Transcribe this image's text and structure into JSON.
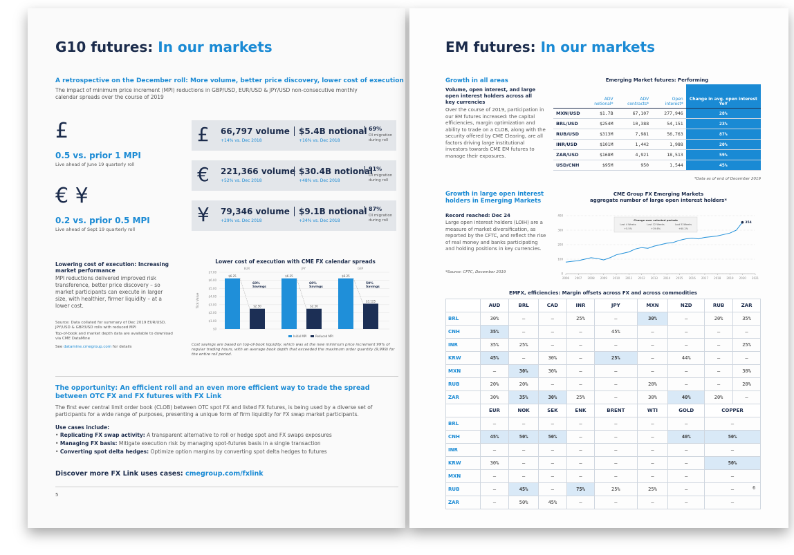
{
  "left_page": {
    "title": "G10 futures:",
    "title_accent": "In our markets",
    "subtitle": "A retrospective on the December roll: More volume, better price discovery, lower cost of execution",
    "intro": "The impact of minimum price increment (MPI) reductions in GBP/USD, EUR/USD & JPY/USD non-consecutive monthly calendar spreads over the course of 2019",
    "icons": [
      "£",
      "€",
      "¥"
    ],
    "mpi": [
      {
        "headline": "0.5 vs. prior 1 MPI",
        "note": "Live ahead of June 19 quarterly roll"
      },
      {
        "headline": "0.2 vs. prior 0.5 MPI",
        "note": "Live ahead of Sept 19 quarterly roll"
      }
    ],
    "stats": [
      {
        "volume": "66,797 volume",
        "volume_change": "+14% vs. Dec 2018",
        "notional": "$5.4B notional",
        "notional_change": "+16% vs. Dec 2018",
        "oi": "69%",
        "oi_note": "OI migration during roll"
      },
      {
        "volume": "221,366 volume",
        "volume_change": "+52% vs. Dec 2018",
        "notional": "$30.4B notional",
        "notional_change": "+48% vs. Dec 2018",
        "oi": "91%",
        "oi_note": "OI migration during roll"
      },
      {
        "volume": "79,346 volume",
        "volume_change": "+29% vs. Dec 2018",
        "notional": "$9.1B notional",
        "notional_change": "+34% vs. Dec 2018",
        "oi": "87%",
        "oi_note": "OI migration during roll"
      }
    ],
    "cost_heading": "Lowering cost of execution: Increasing market performance",
    "cost_text": "MPI reductions delivered improved risk transference, better price discovery – so market participants can execute in larger size, with healthier, firmer liquidity – at a lower cost.",
    "source_notes": [
      "Source: Data collated for summary of Dec 2019 EUR/USD, JPY/USD & GBP/USD rolls with reduced MPI",
      "Top-of-book and market depth data are available to download via CME DataMine"
    ],
    "see_prefix": "See",
    "see_link": "datamine.cmegroup.com",
    "see_suffix": "for details",
    "chart_caption": "Cost savings are based on top-of-book liquidity, which was at the new minimum price increment 99% of regular trading hours, with an average book depth that exceeded the maximum order quantity (9,999) for the entire roll period.",
    "opportunity_heading": "The opportunity: An efficient roll and an even more efficient way to trade the spread between OTC FX and FX futures with FX Link",
    "opportunity_text": "The first ever central limit order book (CLOB) between OTC spot FX and listed FX futures, is being used by a diverse set of participants for a wide range of purposes, presenting a unique form of firm liquidity for FX swap market participants.",
    "use_cases_heading": "Use cases include:",
    "use_cases": [
      {
        "label": "Replicating FX swap activity:",
        "text": "A transparent alternative to roll or hedge spot and FX swaps exposures"
      },
      {
        "label": "Managing FX basis:",
        "text": "Mitigate execution risk by managing spot-futures basis in a single transaction"
      },
      {
        "label": "Converting spot delta hedges:",
        "text": "Optimize option margins by converting spot delta hedges to futures"
      }
    ],
    "discover": "Discover more FX Link uses cases:",
    "discover_link": "cmegroup.com/fxlink",
    "page_number": "5"
  },
  "right_page": {
    "title": "EM futures:",
    "title_accent": "In our markets",
    "growth_heading": "Growth in all areas",
    "growth_subheading": "Volume, open interest, and large open interest holders across all key currencies",
    "growth_text": "Over the course of 2019, participation in our EM futures increased: the capital efficiencies, margin optimization and ability to trade on a CLOB, along with the security offered by CME Clearing, are all factors driving large institutional investors towards CME EM futures to manage their exposures.",
    "performance_table": {
      "title": "Emerging Market futures: Performing",
      "columns": [
        "ADV notional*",
        "ADV contracts*",
        "Open interest*",
        "Change in avg. open interest YoY"
      ],
      "rows": [
        [
          "MXN/USD",
          "$1.7B",
          "67,107",
          "277,946",
          "28%"
        ],
        [
          "BRL/USD",
          "$254M",
          "10,388",
          "54,151",
          "23%"
        ],
        [
          "RUB/USD",
          "$313M",
          "7,981",
          "56,763",
          "87%"
        ],
        [
          "INR/USD",
          "$101M",
          "1,442",
          "1,988",
          "20%"
        ],
        [
          "ZAR/USD",
          "$168M",
          "4,921",
          "18,513",
          "59%"
        ],
        [
          "USD/CNH",
          "$95M",
          "950",
          "1,544",
          "45%"
        ]
      ],
      "note": "*Data as of end of December 2019"
    },
    "loih_heading": "Growth in large open interest holders in Emerging Markets",
    "loih_subheading": "Record reached: Dec 24",
    "loih_text": "Large open interest holders (LOIH) are a measure of market diversification, as reported by the CFTC, and reflect the rise of real money and banks participating and holding positions in key currencies.",
    "loih_source": "*Source: CFTC, December 2019",
    "margin_table": {
      "title": "EMFX, efficiencies: Margin offsets across FX and across commodities",
      "blocks": [
        {
          "columns": [
            "AUD",
            "BRL",
            "CAD",
            "INR",
            "JPY",
            "MXN",
            "NZD",
            "RUB",
            "ZAR"
          ],
          "rows": [
            [
              "BRL",
              "30%",
              "–",
              "–",
              "25%",
              "–",
              "30%",
              "–",
              "20%",
              "35%"
            ],
            [
              "CNH",
              "35%",
              "–",
              "–",
              "–",
              "45%",
              "–",
              "–",
              "–",
              "–"
            ],
            [
              "INR",
              "35%",
              "25%",
              "–",
              "–",
              "–",
              "–",
              "–",
              "–",
              "25%"
            ],
            [
              "KRW",
              "45%",
              "–",
              "30%",
              "–",
              "25%",
              "–",
              "44%",
              "–",
              "–"
            ],
            [
              "MXN",
              "–",
              "30%",
              "30%",
              "–",
              "–",
              "–",
              "–",
              "–",
              "30%"
            ],
            [
              "RUB",
              "20%",
              "20%",
              "–",
              "–",
              "–",
              "20%",
              "–",
              "–",
              "20%"
            ],
            [
              "ZAR",
              "30%",
              "35%",
              "30%",
              "25%",
              "–",
              "30%",
              "40%",
              "20%",
              "–"
            ]
          ]
        },
        {
          "columns": [
            "EUR",
            "NOK",
            "SEK",
            "ENK",
            "BRENT",
            "WTI",
            "GOLD",
            "COPPER"
          ],
          "rows": [
            [
              "BRL",
              "–",
              "–",
              "–",
              "–",
              "–",
              "–",
              "–",
              "–"
            ],
            [
              "CNH",
              "45%",
              "50%",
              "50%",
              "–",
              "–",
              "–",
              "40%",
              "50%"
            ],
            [
              "INR",
              "–",
              "–",
              "–",
              "–",
              "–",
              "–",
              "–",
              "–"
            ],
            [
              "KRW",
              "30%",
              "–",
              "–",
              "–",
              "–",
              "–",
              "–",
              "50%"
            ],
            [
              "MXN",
              "–",
              "–",
              "–",
              "–",
              "–",
              "–",
              "–",
              "–"
            ],
            [
              "RUB",
              "–",
              "45%",
              "–",
              "75%",
              "25%",
              "25%",
              "–",
              "–"
            ],
            [
              "ZAR",
              "–",
              "50%",
              "45%",
              "–",
              "–",
              "–",
              "–",
              "–"
            ]
          ]
        }
      ]
    },
    "page_number": "6"
  },
  "chart_data": [
    {
      "type": "bar",
      "title": "Lower cost of execution with CME FX calendar spreads",
      "ylabel": "Tick Value",
      "categories": [
        "EUR",
        "JPY",
        "GBP"
      ],
      "series": [
        {
          "name": "Initial MPI",
          "color": "#1f8fd9",
          "values": [
            6.25,
            6.25,
            6.25
          ],
          "value_labels": [
            "$6.25",
            "$6.25",
            "$6.25"
          ]
        },
        {
          "name": "Reduced MPI",
          "color": "#1c2f55",
          "values": [
            2.5,
            2.5,
            3.125
          ],
          "value_labels": [
            "$2.50",
            "$2.50",
            "$3.125"
          ]
        }
      ],
      "annotations": [
        {
          "pct": "60%",
          "text": "Savings"
        },
        {
          "pct": "60%",
          "text": "Savings"
        },
        {
          "pct": "50%",
          "text": "Savings"
        }
      ],
      "ylim": [
        0,
        7
      ],
      "yticks": [
        {
          "value": 0,
          "label": "$0"
        },
        {
          "value": 1,
          "label": "$1.00"
        },
        {
          "value": 2,
          "label": "$2.00"
        },
        {
          "value": 3,
          "label": "$3.00"
        },
        {
          "value": 4,
          "label": "$4.00"
        },
        {
          "value": 5,
          "label": "$5.00"
        },
        {
          "value": 6,
          "label": "$6.00"
        },
        {
          "value": 7,
          "label": "$7.00"
        }
      ],
      "grid": true
    },
    {
      "type": "line",
      "title": "CME Group FX Emerging Markets",
      "subtitle": "aggregate number of large open interest holders*",
      "x": [
        2006,
        2006.5,
        2007,
        2007.5,
        2008,
        2008.5,
        2009,
        2009.5,
        2010,
        2010.5,
        2011,
        2011.5,
        2012,
        2012.5,
        2013,
        2013.5,
        2014,
        2014.5,
        2015,
        2015.5,
        2016,
        2016.5,
        2017,
        2017.5,
        2018,
        2018.5,
        2019,
        2019.5,
        2019.98
      ],
      "series": [
        {
          "name": "LOIH",
          "color": "#1f8fd9",
          "values": [
            80,
            85,
            90,
            100,
            110,
            105,
            95,
            110,
            130,
            140,
            150,
            170,
            180,
            175,
            190,
            200,
            210,
            215,
            230,
            240,
            245,
            240,
            250,
            255,
            260,
            270,
            280,
            300,
            354
          ]
        }
      ],
      "inset_title": "Change over selected periods",
      "inset": [
        {
          "label": "Last 4 Weeks",
          "value": "+5.5%"
        },
        {
          "label": "Last 12 Weeks",
          "value": "+19.6%"
        },
        {
          "label": "Last 52Weeks",
          "value": "+60.2%"
        }
      ],
      "xlim": [
        2006,
        2021
      ],
      "xticks": [
        2006,
        2007,
        2008,
        2009,
        2010,
        2011,
        2012,
        2013,
        2014,
        2015,
        2016,
        2017,
        2018,
        2019,
        2020,
        2021
      ],
      "ylim": [
        0,
        400
      ],
      "yticks": [
        0,
        100,
        200,
        300,
        400
      ],
      "grid": true
    }
  ]
}
